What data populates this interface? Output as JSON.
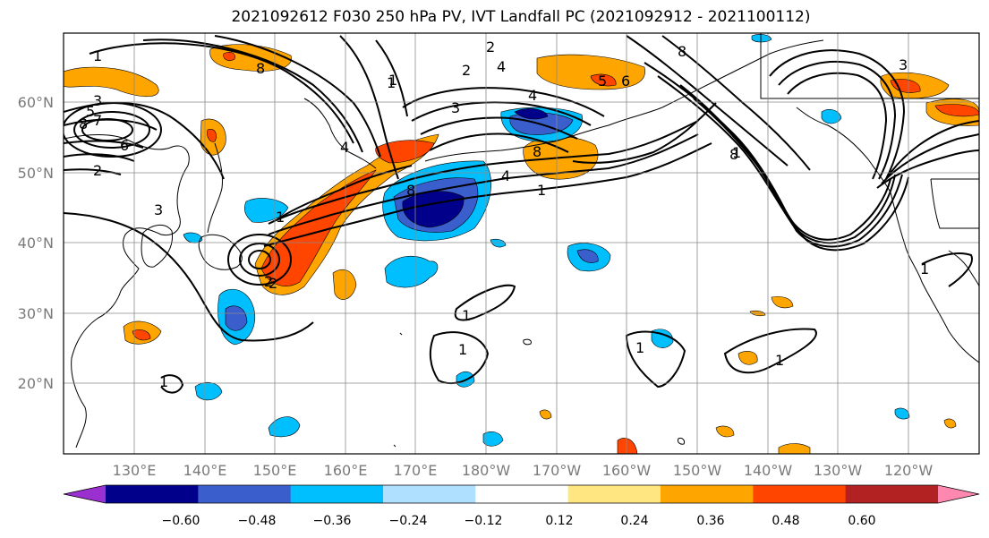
{
  "title": "2021092612 F030 250 hPa PV, IVT Landfall PC (2021092912 - 2021100112)",
  "lat_labels": [
    "60°N",
    "50°N",
    "40°N",
    "30°N",
    "20°N"
  ],
  "lon_labels": [
    "130°E",
    "140°E",
    "150°E",
    "160°E",
    "170°E",
    "180°W",
    "170°W",
    "160°W",
    "150°W",
    "140°W",
    "130°W",
    "120°W"
  ],
  "colorbar": {
    "colors": [
      "#9b30d0",
      "#00008b",
      "#3a5fcd",
      "#00bfff",
      "#b0e0ff",
      "#ffffff",
      "#ffe680",
      "#ffa500",
      "#ff4500",
      "#b22222",
      "#ff88b0"
    ],
    "tick_labels": [
      "−0.60",
      "−0.48",
      "−0.36",
      "−0.24",
      "−0.12",
      "0.12",
      "0.24",
      "0.36",
      "0.48",
      "0.60"
    ]
  },
  "contour_labels": [
    "1",
    "8",
    "3",
    "5",
    "8",
    "7",
    "6",
    "2",
    "3",
    "1",
    "2",
    "4",
    "2",
    "3",
    "1",
    "4",
    "8",
    "4",
    "1",
    "8",
    "5",
    "6",
    "4",
    "3",
    "8",
    "2",
    "8",
    "1",
    "1",
    "1",
    "1",
    "1",
    "1",
    "1",
    "1",
    "2"
  ]
}
